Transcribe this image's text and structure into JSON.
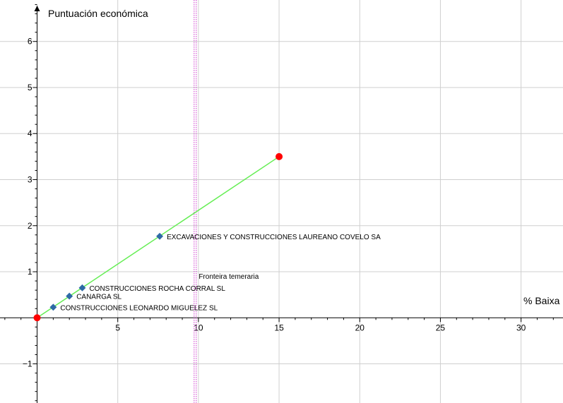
{
  "chart_data": {
    "type": "scatter",
    "title": "",
    "xlabel": "% Baixa",
    "ylabel": "Puntuación económica",
    "xlim": [
      -2.3,
      32.6
    ],
    "ylim": [
      -1.85,
      6.9
    ],
    "x_ticks": [
      5,
      10,
      15,
      20,
      25,
      30
    ],
    "y_ticks": [
      -1,
      1,
      2,
      3,
      4,
      5,
      6
    ],
    "x_tick_labels": [
      "5",
      "10",
      "15",
      "20",
      "25",
      "30"
    ],
    "y_tick_labels": [
      "−1",
      "1",
      "2",
      "3",
      "4",
      "5",
      "6"
    ],
    "x_minor_step": 1,
    "y_minor_step": 0.2,
    "grid": true,
    "colors": {
      "grid": "#cfcfcf",
      "axis": "#000000",
      "line": "#66ee55",
      "endpoint": "#ff0000",
      "point": "#2e6aa6",
      "threshold": "#cc33cc"
    },
    "line": {
      "from": [
        0,
        0
      ],
      "to": [
        15,
        3.5
      ]
    },
    "endpoints": [
      {
        "x": 0,
        "y": 0
      },
      {
        "x": 15,
        "y": 3.5
      }
    ],
    "threshold": {
      "x": 9.8,
      "label": "Fronteira temeraria"
    },
    "points": [
      {
        "label": "CONSTRUCCIONES LEONARDO MIGUELEZ SL",
        "x": 1.0,
        "y": 0.23
      },
      {
        "label": "CANARGA SL",
        "x": 2.0,
        "y": 0.47
      },
      {
        "label": "CONSTRUCCIONES ROCHA CORRAL SL",
        "x": 2.8,
        "y": 0.65
      },
      {
        "label": "EXCAVACIONES Y CONSTRUCCIONES LAUREANO COVELO SA",
        "x": 7.6,
        "y": 1.77
      }
    ]
  }
}
